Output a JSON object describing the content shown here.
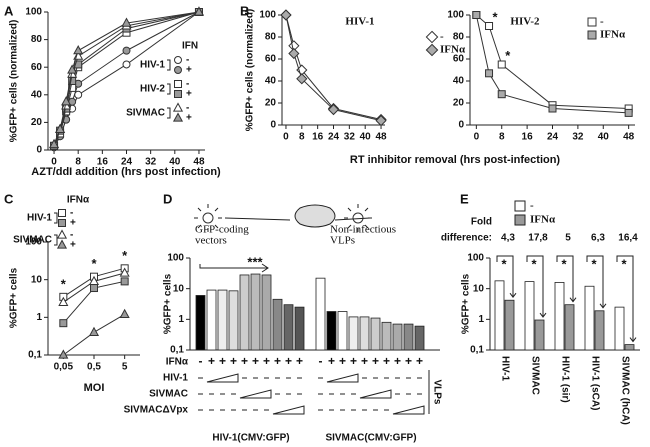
{
  "chart_data": [
    {
      "label": "A",
      "type": "line",
      "ylabel": "%GFP+ cells (normalized)",
      "xlabel": "AZT/ddI addition (hrs post infection)",
      "x": [
        0,
        2,
        4,
        6,
        8,
        24,
        48
      ],
      "xlim": [
        -2,
        50
      ],
      "xticks": [
        0,
        8,
        16,
        24,
        32,
        40,
        48
      ],
      "ylim": [
        0,
        100
      ],
      "yticks": [
        0,
        20,
        40,
        60,
        80,
        100
      ],
      "legend_title": "IFN",
      "groups": [
        {
          "name": "HIV-1",
          "series": [
            {
              "name": "-",
              "marker": "circle",
              "color": "#ffffff",
              "values": [
                2,
                10,
                22,
                30,
                40,
                62,
                100
              ]
            },
            {
              "name": "+",
              "marker": "circle",
              "color": "#999999",
              "values": [
                2,
                10,
                22,
                35,
                48,
                72,
                100
              ]
            }
          ]
        },
        {
          "name": "HIV-2",
          "series": [
            {
              "name": "-",
              "marker": "square",
              "color": "#ffffff",
              "values": [
                3,
                12,
                28,
                45,
                60,
                85,
                100
              ]
            },
            {
              "name": "+",
              "marker": "square",
              "color": "#999999",
              "values": [
                3,
                14,
                30,
                50,
                62,
                88,
                100
              ]
            }
          ]
        },
        {
          "name": "SIVMAC",
          "series": [
            {
              "name": "-",
              "marker": "triangle",
              "color": "#ffffff",
              "values": [
                4,
                15,
                32,
                55,
                68,
                90,
                100
              ]
            },
            {
              "name": "+",
              "marker": "triangle",
              "color": "#999999",
              "values": [
                4,
                15,
                35,
                58,
                72,
                92,
                100
              ]
            }
          ]
        }
      ]
    },
    {
      "label": "B",
      "type": "line",
      "title": "HIV-1",
      "ylabel": "%GFP+ cells (normalized)",
      "xlabel": "RT inhibitor removal (hrs post-infection)",
      "x": [
        0,
        4,
        8,
        24,
        48
      ],
      "xlim": [
        -2,
        50
      ],
      "xticks": [
        0,
        8,
        16,
        24,
        32,
        40,
        48
      ],
      "ylim": [
        0,
        100
      ],
      "yticks": [
        0,
        20,
        40,
        60,
        80,
        100
      ],
      "series": [
        {
          "name": "-",
          "marker": "diamond",
          "color": "#ffffff",
          "values": [
            100,
            72,
            50,
            15,
            5
          ]
        },
        {
          "name": "IFNα",
          "marker": "diamond",
          "color": "#aaaaaa",
          "values": [
            100,
            65,
            42,
            14,
            4
          ]
        }
      ]
    },
    {
      "type": "line",
      "title": "HIV-2",
      "x": [
        0,
        4,
        8,
        24,
        48
      ],
      "xlim": [
        -2,
        50
      ],
      "xticks": [
        0,
        8,
        16,
        24,
        32,
        40,
        48
      ],
      "ylim": [
        0,
        100
      ],
      "yticks": [
        0,
        20,
        40,
        60,
        80,
        100
      ],
      "series": [
        {
          "name": "-",
          "marker": "square",
          "color": "#ffffff",
          "values": [
            100,
            90,
            55,
            18,
            15
          ]
        },
        {
          "name": "IFNα",
          "marker": "square",
          "color": "#aaaaaa",
          "values": [
            100,
            47,
            28,
            15,
            11
          ]
        }
      ],
      "annotations": [
        {
          "x": 4,
          "text": "*"
        },
        {
          "x": 8,
          "text": "*"
        }
      ]
    },
    {
      "label": "C",
      "type": "line",
      "ylabel": "%GFP+ cells",
      "xlabel": "MOI",
      "categories": [
        "0,05",
        "0,5",
        "5"
      ],
      "ylog": true,
      "ylim": [
        0.1,
        100
      ],
      "yticks": [
        {
          "value": 0.1,
          "label": "0,1"
        },
        1,
        10,
        100
      ],
      "legend_title": "IFNα",
      "groups": [
        {
          "name": "HIV-1",
          "series": [
            {
              "name": "-",
              "marker": "square",
              "color": "#ffffff",
              "values": [
                3.5,
                12,
                20
              ]
            },
            {
              "name": "+",
              "marker": "square",
              "color": "#999999",
              "values": [
                0.7,
                6,
                9
              ]
            }
          ]
        },
        {
          "name": "SIVMAC",
          "series": [
            {
              "name": "-",
              "marker": "triangle",
              "color": "#ffffff",
              "values": [
                2.5,
                9,
                15
              ]
            },
            {
              "name": "+",
              "marker": "triangle",
              "color": "#999999",
              "values": [
                0.1,
                0.4,
                1.2
              ]
            }
          ]
        }
      ],
      "annotations": [
        "*",
        "*",
        "*"
      ]
    },
    {
      "label": "D",
      "type": "bar",
      "ylabel": "%GFP+ cells",
      "ylog": true,
      "ylim": [
        0.1,
        100
      ],
      "yticks": [
        {
          "value": 0.1,
          "label": "0,1"
        },
        1,
        10,
        100
      ],
      "values": [
        6,
        9,
        9,
        8.5,
        28,
        30,
        28,
        4.5,
        3,
        2.5,
        22,
        1.8,
        1.8,
        1.2,
        1.2,
        1.1,
        0.8,
        0.7,
        0.7,
        0.6
      ],
      "colors": [
        "#000000",
        "#ffffff",
        "#eeeeee",
        "#dddddd",
        "#cccccc",
        "#bbbbbb",
        "#aaaaaa",
        "#888888",
        "#666666",
        "#555555",
        "#ffffff",
        "#000000",
        "#ffffff",
        "#eeeeee",
        "#dddddd",
        "#cccccc",
        "#bbbbbb",
        "#aaaaaa",
        "#888888",
        "#666666"
      ],
      "ifn_label": "IFNα",
      "ifn": [
        "-",
        "+",
        "+",
        "+",
        "+",
        "+",
        "+",
        "+",
        "+",
        "+",
        "-",
        "+",
        "+",
        "+",
        "+",
        "+",
        "+",
        "+",
        "+",
        "+"
      ],
      "rows": [
        "HIV-1",
        "SIVMAC",
        "SIVMACΔVpx"
      ],
      "row_tag": "VLPs",
      "groups": [
        "HIV-1(CMV:GFP)",
        "SIVMAC(CMV:GFP)"
      ],
      "notes": [
        [
          "GFP-coding",
          "vectors"
        ],
        [
          "Non-infectious",
          "VLPs"
        ]
      ],
      "stars": "***"
    },
    {
      "label": "E",
      "type": "groupedbar",
      "ylabel": "%GFP+ cells",
      "ylog": true,
      "ylim": [
        0.1,
        100
      ],
      "yticks": [
        {
          "value": 0.1,
          "label": "0,1"
        },
        1,
        10,
        100
      ],
      "categories": [
        "HIV-1",
        "SIVMAC",
        "HIV-1 (sir)",
        "HIV-1 (sCA)",
        "SIVMAC (hCA)"
      ],
      "series": [
        {
          "name": "-",
          "color": "#ffffff",
          "values": [
            18,
            17,
            16,
            12,
            2.5
          ]
        },
        {
          "name": "IFNα",
          "color": "#999999",
          "values": [
            4.2,
            0.95,
            3,
            1.9,
            0.15
          ]
        }
      ],
      "fold_label": [
        "Fold",
        "difference:"
      ],
      "fold": [
        "4,3",
        "17,8",
        "5",
        "6,3",
        "16,4"
      ],
      "annotations": [
        "*",
        "*",
        "*",
        "*",
        "*"
      ]
    }
  ]
}
